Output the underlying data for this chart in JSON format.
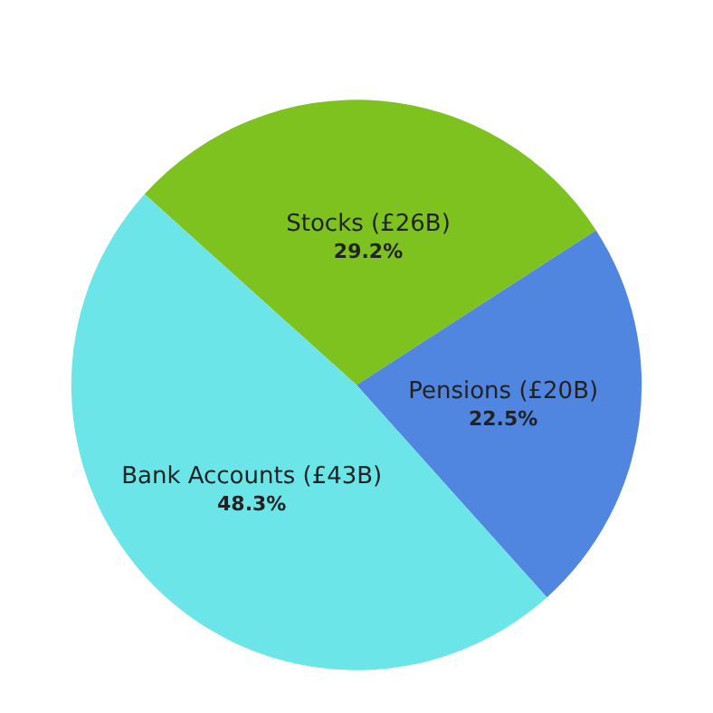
{
  "chart_data": {
    "type": "pie",
    "categories": [
      "Stocks (£26B)",
      "Pensions (£20B)",
      "Bank Accounts (£43B)"
    ],
    "values": [
      29.2,
      22.5,
      48.3
    ],
    "value_labels": [
      "29.2%",
      "22.5%",
      "48.3%"
    ],
    "colors": [
      "#7dc21e",
      "#5085e0",
      "#6ce5e8"
    ],
    "legend": false
  }
}
